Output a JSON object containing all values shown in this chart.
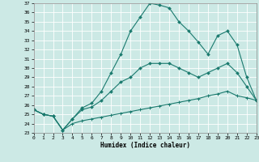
{
  "xlabel": "Humidex (Indice chaleur)",
  "bg_color": "#cce9e5",
  "line_color": "#1a7a6e",
  "grid_color": "#ffffff",
  "ylim": [
    23,
    37
  ],
  "xlim": [
    0,
    23
  ],
  "yticks": [
    23,
    24,
    25,
    26,
    27,
    28,
    29,
    30,
    31,
    32,
    33,
    34,
    35,
    36,
    37
  ],
  "xticks": [
    0,
    1,
    2,
    3,
    4,
    5,
    6,
    7,
    8,
    9,
    10,
    11,
    12,
    13,
    14,
    15,
    16,
    17,
    18,
    19,
    20,
    21,
    22,
    23
  ],
  "curve1_x": [
    0,
    1,
    2,
    3,
    4,
    5,
    6,
    7,
    8,
    9,
    10,
    11,
    12,
    13,
    14,
    15,
    16,
    17,
    18,
    19,
    20,
    21,
    22,
    23
  ],
  "curve1_y": [
    25.5,
    25.0,
    24.8,
    23.3,
    24.5,
    25.7,
    26.2,
    27.5,
    29.5,
    31.5,
    34.0,
    35.5,
    37.0,
    36.8,
    36.5,
    35.0,
    34.0,
    32.8,
    31.5,
    33.5,
    34.0,
    32.5,
    29.0,
    26.5
  ],
  "curve2_x": [
    0,
    1,
    2,
    3,
    4,
    5,
    6,
    7,
    8,
    9,
    10,
    11,
    12,
    13,
    14,
    15,
    16,
    17,
    18,
    19,
    20,
    21,
    22,
    23
  ],
  "curve2_y": [
    25.5,
    25.0,
    24.8,
    23.3,
    24.5,
    25.5,
    25.8,
    26.5,
    27.5,
    28.5,
    29.0,
    30.0,
    30.5,
    30.5,
    30.5,
    30.0,
    29.5,
    29.0,
    29.5,
    30.0,
    30.5,
    29.5,
    28.0,
    26.5
  ],
  "curve3_x": [
    0,
    1,
    2,
    3,
    4,
    5,
    6,
    7,
    8,
    9,
    10,
    11,
    12,
    13,
    14,
    15,
    16,
    17,
    18,
    19,
    20,
    21,
    22,
    23
  ],
  "curve3_y": [
    25.5,
    25.0,
    24.8,
    23.3,
    24.0,
    24.3,
    24.5,
    24.7,
    24.9,
    25.1,
    25.3,
    25.5,
    25.7,
    25.9,
    26.1,
    26.3,
    26.5,
    26.7,
    27.0,
    27.2,
    27.5,
    27.0,
    26.8,
    26.5
  ]
}
